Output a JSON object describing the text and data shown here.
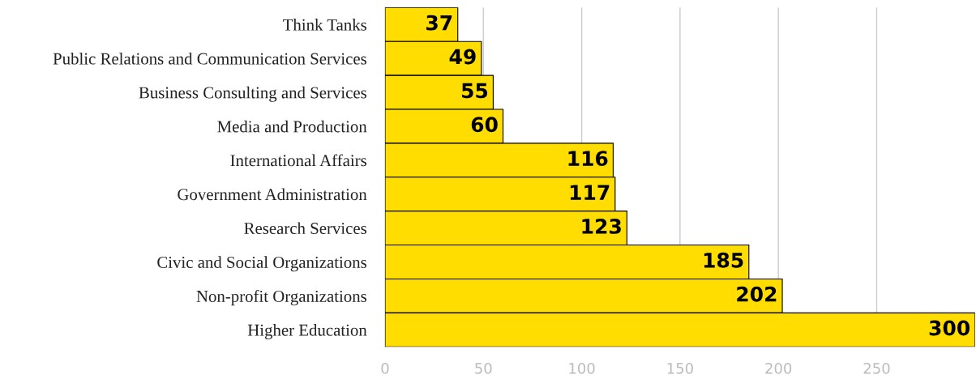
{
  "chart_data": {
    "type": "bar",
    "orientation": "horizontal",
    "categories": [
      "Think Tanks",
      "Public Relations and Communication Services",
      "Business Consulting and Services",
      "Media and Production",
      "International Affairs",
      "Government Administration",
      "Research Services",
      "Civic and Social Organizations",
      "Non-profit Organizations",
      "Higher Education"
    ],
    "values": [
      37,
      49,
      55,
      60,
      116,
      117,
      123,
      185,
      202,
      300
    ],
    "color": "#ffdd00",
    "xlim": [
      0,
      300
    ],
    "xticks": [
      0,
      50,
      100,
      150,
      200,
      250
    ],
    "grid": "x",
    "data_labels": true
  }
}
